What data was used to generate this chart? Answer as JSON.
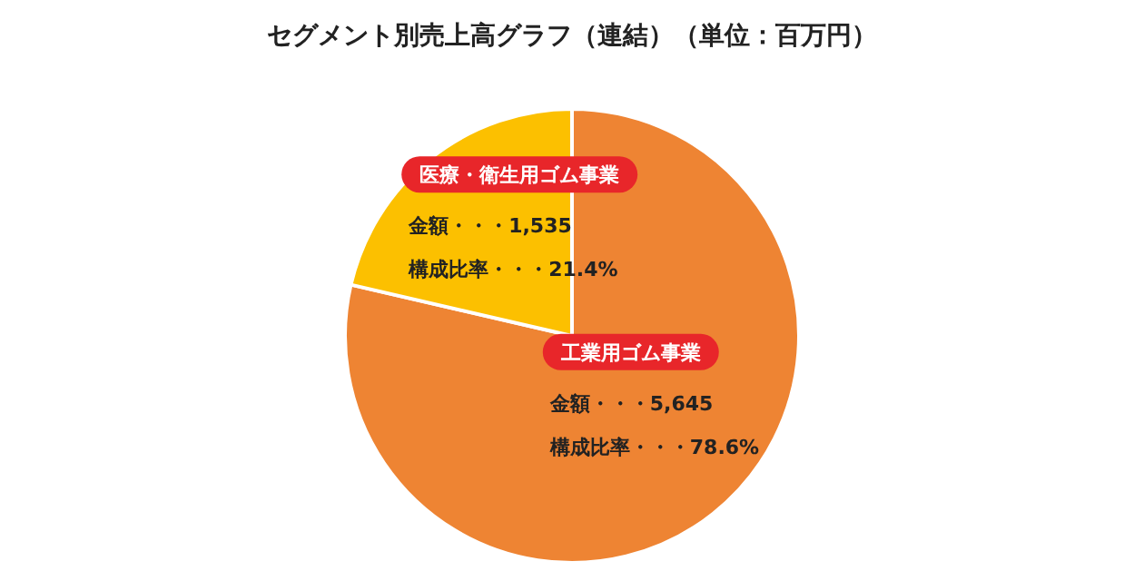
{
  "chart_data": {
    "type": "pie",
    "title": "セグメント別売上高グラフ（連結）（単位：百万円）",
    "categories": [
      "工業用ゴム事業",
      "医療・衛生用ゴム事業"
    ],
    "values": [
      5645,
      1535
    ],
    "colors": [
      "#ee8433",
      "#fcc000"
    ],
    "value_labels": [
      "金額・・・5,645",
      "金額・・・1,535"
    ],
    "annotations": [
      "構成比率・・・78.6%",
      "構成比率・・・21.4%"
    ]
  }
}
